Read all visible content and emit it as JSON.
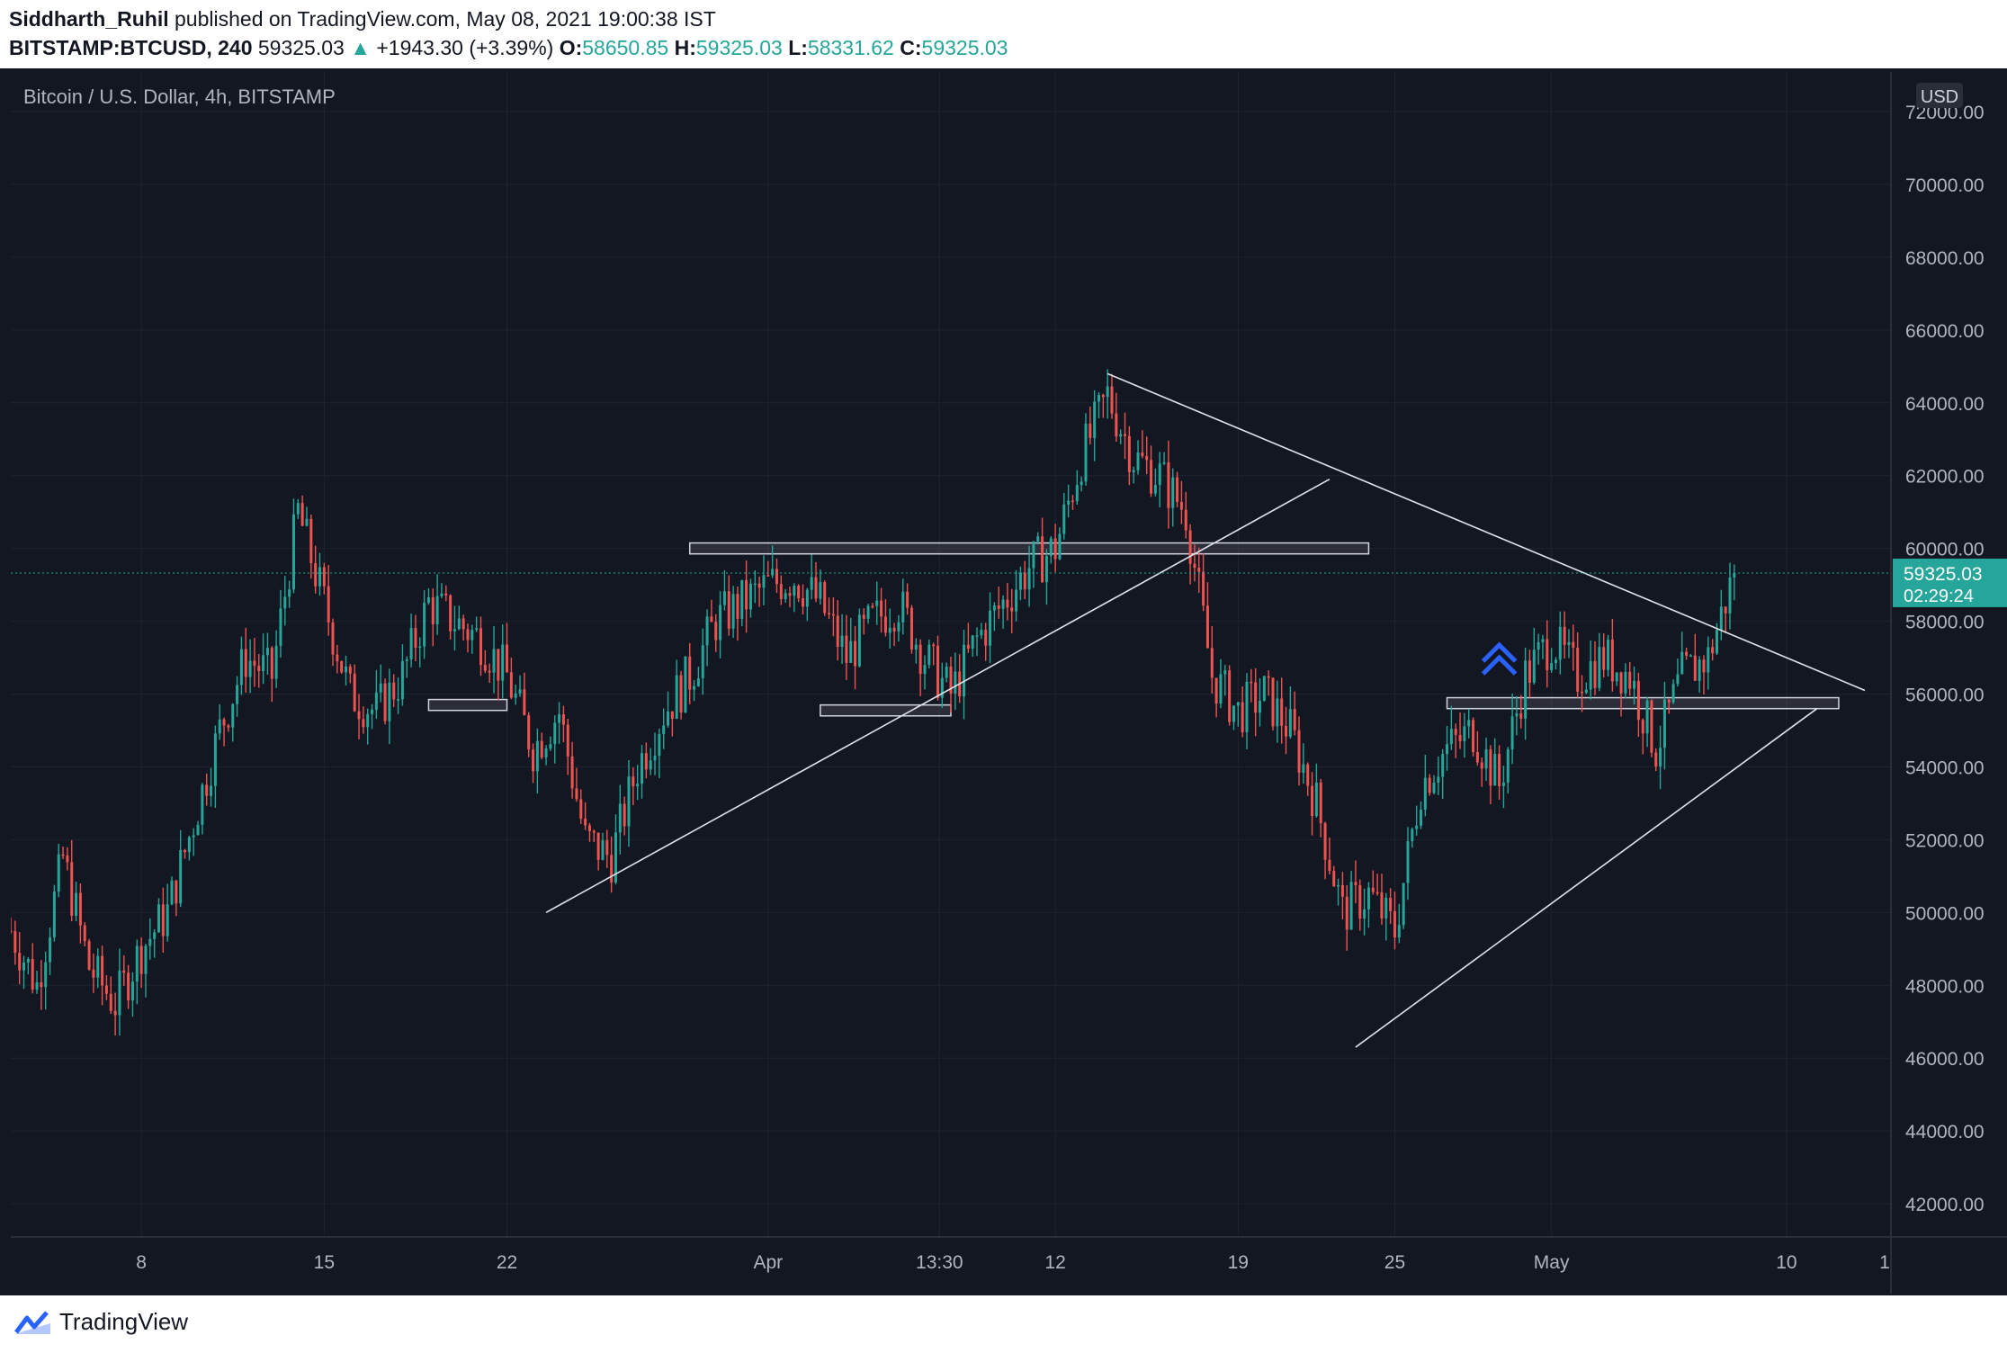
{
  "header": {
    "author": "Siddharth_Ruhil",
    "published_text": "published on TradingView.com, May 08, 2021 19:00:38 IST",
    "symbol": "BITSTAMP:BTCUSD, 240",
    "last": "59325.03",
    "change": "+1943.30 (+3.39%)",
    "o_label": "O:",
    "o": "58650.85",
    "h_label": "H:",
    "h": "59325.03",
    "l_label": "L:",
    "l": "58331.62",
    "c_label": "C:",
    "c": "59325.03"
  },
  "legend": "Bitcoin / U.S. Dollar, 4h, BITSTAMP",
  "currency": "USD",
  "price_tag": {
    "price": "59325.03",
    "countdown": "02:29:24"
  },
  "footer": {
    "brand": "TradingView"
  },
  "colors": {
    "up": "#26a69a",
    "down": "#ef5350",
    "bg": "#131722",
    "grid": "#1f2330",
    "tag": "#26a69a"
  },
  "chart_data": {
    "type": "candlestick",
    "title": "Bitcoin / U.S. Dollar, 4h, BITSTAMP",
    "ylim": [
      40000,
      72000
    ],
    "y_ticks": [
      42000,
      44000,
      46000,
      48000,
      50000,
      52000,
      54000,
      56000,
      58000,
      60000,
      62000,
      64000,
      66000,
      68000,
      70000,
      72000
    ],
    "y_tick_labels": [
      "42000.00",
      "44000.00",
      "46000.00",
      "48000.00",
      "50000.00",
      "52000.00",
      "54000.00",
      "56000.00",
      "58000.00",
      "60000.00",
      "62000.00",
      "64000.00",
      "66000.00",
      "68000.00",
      "70000.00",
      "72000.00"
    ],
    "x_range": [
      "2021-03-03",
      "2021-05-14"
    ],
    "x_ticks": [
      {
        "date": "2021-03-08",
        "label": "8"
      },
      {
        "date": "2021-03-15",
        "label": "15"
      },
      {
        "date": "2021-03-22",
        "label": "22"
      },
      {
        "date": "2021-04-01",
        "label": "Apr"
      },
      {
        "date": "2021-04-07 13:30",
        "label": "13:30"
      },
      {
        "date": "2021-04-12",
        "label": "12"
      },
      {
        "date": "2021-04-19",
        "label": "19"
      },
      {
        "date": "2021-04-25",
        "label": "25"
      },
      {
        "date": "2021-05-01",
        "label": "May"
      },
      {
        "date": "2021-05-10",
        "label": "10"
      },
      {
        "date": "2021-05-17",
        "label": "1"
      }
    ],
    "anchors": [
      [
        "2021-03-03",
        49500
      ],
      [
        "2021-03-04",
        48000
      ],
      [
        "2021-03-05",
        51500
      ],
      [
        "2021-03-06",
        48500
      ],
      [
        "2021-03-07",
        47500
      ],
      [
        "2021-03-08",
        49000
      ],
      [
        "2021-03-09",
        50000
      ],
      [
        "2021-03-10",
        52500
      ],
      [
        "2021-03-11",
        55000
      ],
      [
        "2021-03-12",
        57000
      ],
      [
        "2021-03-13",
        56500
      ],
      [
        "2021-03-14",
        61000
      ],
      [
        "2021-03-15",
        58500
      ],
      [
        "2021-03-16",
        56000
      ],
      [
        "2021-03-17",
        55500
      ],
      [
        "2021-03-18",
        56500
      ],
      [
        "2021-03-19",
        58500
      ],
      [
        "2021-03-20",
        58000
      ],
      [
        "2021-03-21",
        57500
      ],
      [
        "2021-03-22",
        56500
      ],
      [
        "2021-03-23",
        54500
      ],
      [
        "2021-03-24",
        55500
      ],
      [
        "2021-03-25",
        52000
      ],
      [
        "2021-03-26",
        51500
      ],
      [
        "2021-03-27",
        54000
      ],
      [
        "2021-03-28",
        55500
      ],
      [
        "2021-03-29",
        56500
      ],
      [
        "2021-03-30",
        58000
      ],
      [
        "2021-03-31",
        58500
      ],
      [
        "2021-04-01",
        59000
      ],
      [
        "2021-04-02",
        59200
      ],
      [
        "2021-04-03",
        58500
      ],
      [
        "2021-04-04",
        57000
      ],
      [
        "2021-04-05",
        58000
      ],
      [
        "2021-04-06",
        58500
      ],
      [
        "2021-04-07",
        57000
      ],
      [
        "2021-04-08",
        56000
      ],
      [
        "2021-04-09",
        57500
      ],
      [
        "2021-04-10",
        58500
      ],
      [
        "2021-04-11",
        59500
      ],
      [
        "2021-04-12",
        60000
      ],
      [
        "2021-04-13",
        62500
      ],
      [
        "2021-04-14",
        64200
      ],
      [
        "2021-04-15",
        62500
      ],
      [
        "2021-04-16",
        62000
      ],
      [
        "2021-04-17",
        61000
      ],
      [
        "2021-04-18",
        56500
      ],
      [
        "2021-04-19",
        55500
      ],
      [
        "2021-04-20",
        56000
      ],
      [
        "2021-04-21",
        55000
      ],
      [
        "2021-04-22",
        53000
      ],
      [
        "2021-04-23",
        50000
      ],
      [
        "2021-04-24",
        50500
      ],
      [
        "2021-04-25",
        49500
      ],
      [
        "2021-04-26",
        53500
      ],
      [
        "2021-04-27",
        54500
      ],
      [
        "2021-04-28",
        55000
      ],
      [
        "2021-04-29",
        53500
      ],
      [
        "2021-04-30",
        56500
      ],
      [
        "2021-05-01",
        57500
      ],
      [
        "2021-05-02",
        56500
      ],
      [
        "2021-05-03",
        57000
      ],
      [
        "2021-05-04",
        56500
      ],
      [
        "2021-05-05",
        54500
      ],
      [
        "2021-05-06",
        56500
      ],
      [
        "2021-05-07",
        57000
      ],
      [
        "2021-05-08",
        59325
      ]
    ],
    "annotations": {
      "zones": [
        {
          "from": "2021-03-19",
          "to": "2021-03-22",
          "low": 55550,
          "high": 55850
        },
        {
          "from": "2021-04-03",
          "to": "2021-04-08",
          "low": 55400,
          "high": 55700
        },
        {
          "from": "2021-03-29",
          "to": "2021-04-24",
          "low": 59850,
          "high": 60150
        },
        {
          "from": "2021-04-27",
          "to": "2021-05-12",
          "low": 55600,
          "high": 55900
        }
      ],
      "lines": [
        {
          "from": [
            "2021-03-23 12:00",
            50000
          ],
          "to": [
            "2021-04-22 12:00",
            61900
          ]
        },
        {
          "from": [
            "2021-04-14",
            64800
          ],
          "to": [
            "2021-05-13",
            56100
          ]
        },
        {
          "from": [
            "2021-04-23 12:00",
            46300
          ],
          "to": [
            "2021-05-11 04:00",
            55600
          ]
        }
      ],
      "marker": {
        "date": "2021-04-29",
        "price": 57000,
        "label": "double-chevron-up"
      }
    }
  }
}
